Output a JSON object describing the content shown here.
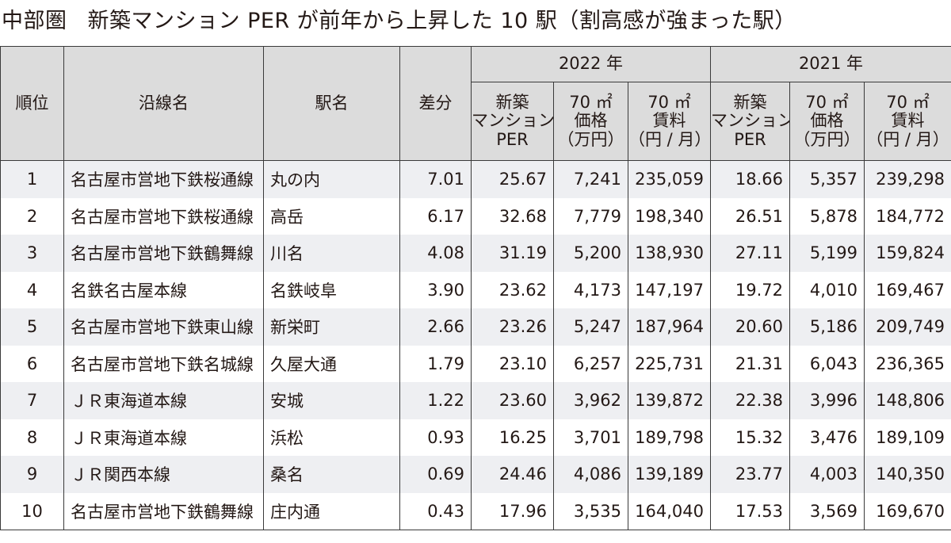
{
  "title": {
    "region": "中部圏",
    "text": "新築マンション PER が前年から上昇した 10 駅（割高感が強まった駅）"
  },
  "headers": {
    "rank": "順位",
    "line": "沿線名",
    "station": "駅名",
    "diff": "差分",
    "year_a": "2022 年",
    "year_b": "2021 年",
    "per": [
      "新築",
      "マンション",
      "PER"
    ],
    "price": [
      "70 ㎡",
      "価格",
      "（万円）"
    ],
    "rent": [
      "70 ㎡",
      "賃料",
      "（円 / 月）"
    ]
  },
  "rows": [
    {
      "rank": "1",
      "line": "名古屋市営地下鉄桜通線",
      "station": "丸の内",
      "diff": "7.01",
      "per22": "25.67",
      "price22": "7,241",
      "rent22": "235,059",
      "per21": "18.66",
      "price21": "5,357",
      "rent21": "239,298"
    },
    {
      "rank": "2",
      "line": "名古屋市営地下鉄桜通線",
      "station": "高岳",
      "diff": "6.17",
      "per22": "32.68",
      "price22": "7,779",
      "rent22": "198,340",
      "per21": "26.51",
      "price21": "5,878",
      "rent21": "184,772"
    },
    {
      "rank": "3",
      "line": "名古屋市営地下鉄鶴舞線",
      "station": "川名",
      "diff": "4.08",
      "per22": "31.19",
      "price22": "5,200",
      "rent22": "138,930",
      "per21": "27.11",
      "price21": "5,199",
      "rent21": "159,824"
    },
    {
      "rank": "4",
      "line": "名鉄名古屋本線",
      "station": "名鉄岐阜",
      "diff": "3.90",
      "per22": "23.62",
      "price22": "4,173",
      "rent22": "147,197",
      "per21": "19.72",
      "price21": "4,010",
      "rent21": "169,467"
    },
    {
      "rank": "5",
      "line": "名古屋市営地下鉄東山線",
      "station": "新栄町",
      "diff": "2.66",
      "per22": "23.26",
      "price22": "5,247",
      "rent22": "187,964",
      "per21": "20.60",
      "price21": "5,186",
      "rent21": "209,749"
    },
    {
      "rank": "6",
      "line": "名古屋市営地下鉄名城線",
      "station": "久屋大通",
      "diff": "1.79",
      "per22": "23.10",
      "price22": "6,257",
      "rent22": "225,731",
      "per21": "21.31",
      "price21": "6,043",
      "rent21": "236,365"
    },
    {
      "rank": "7",
      "line": "ＪＲ東海道本線",
      "station": "安城",
      "diff": "1.22",
      "per22": "23.60",
      "price22": "3,962",
      "rent22": "139,872",
      "per21": "22.38",
      "price21": "3,996",
      "rent21": "148,806"
    },
    {
      "rank": "8",
      "line": "ＪＲ東海道本線",
      "station": "浜松",
      "diff": "0.93",
      "per22": "16.25",
      "price22": "3,701",
      "rent22": "189,798",
      "per21": "15.32",
      "price21": "3,476",
      "rent21": "189,109"
    },
    {
      "rank": "9",
      "line": "ＪＲ関西本線",
      "station": "桑名",
      "diff": "0.69",
      "per22": "24.46",
      "price22": "4,086",
      "rent22": "139,189",
      "per21": "23.77",
      "price21": "4,003",
      "rent21": "140,350"
    },
    {
      "rank": "10",
      "line": "名古屋市営地下鉄鶴舞線",
      "station": "庄内通",
      "diff": "0.43",
      "per22": "17.96",
      "price22": "3,535",
      "rent22": "164,040",
      "per21": "17.53",
      "price21": "3,569",
      "rent21": "169,670"
    }
  ]
}
